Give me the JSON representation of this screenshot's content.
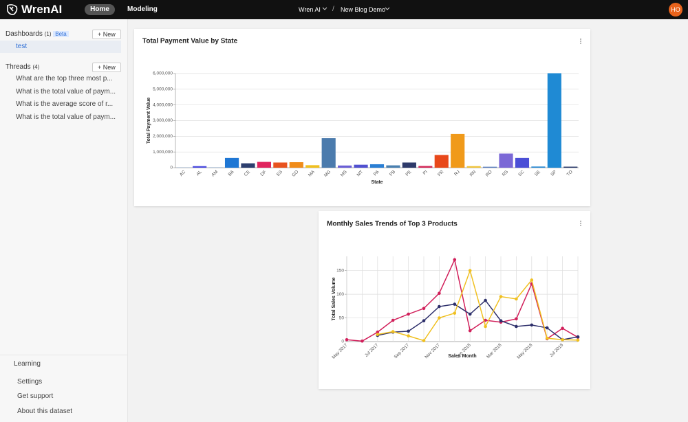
{
  "header": {
    "logo": "WrenAI",
    "nav": [
      "Home",
      "Modeling"
    ],
    "project": "Wren AI",
    "separator": "/",
    "dataset": "New Blog Demo",
    "avatar": "HO"
  },
  "sidebar": {
    "dashboards": {
      "title": "Dashboards",
      "count": "(1)",
      "badge": "Beta",
      "new": "New",
      "items": [
        "test"
      ]
    },
    "threads": {
      "title": "Threads",
      "count": "(4)",
      "new": "New",
      "items": [
        "What are the top three most p...",
        "What is the total value of paym...",
        "What is the average score of r...",
        "What is the total value of paym..."
      ]
    },
    "footer": [
      "Learning",
      "Settings",
      "Get support",
      "About this dataset"
    ]
  },
  "chart_data": [
    {
      "type": "bar",
      "title": "Total Payment Value by State",
      "x_label": "State",
      "y_label": "Total Payment Value",
      "categories": [
        "AC",
        "AL",
        "AM",
        "BA",
        "CE",
        "DF",
        "ES",
        "GO",
        "MA",
        "MG",
        "MS",
        "MT",
        "PA",
        "PB",
        "PE",
        "PI",
        "PR",
        "RJ",
        "RN",
        "RO",
        "RS",
        "SC",
        "SE",
        "SP",
        "TO"
      ],
      "values": [
        20000,
        100000,
        25000,
        620000,
        280000,
        370000,
        330000,
        350000,
        160000,
        1880000,
        140000,
        190000,
        220000,
        150000,
        330000,
        110000,
        810000,
        2150000,
        100000,
        60000,
        900000,
        620000,
        75000,
        6020000,
        65000
      ],
      "colors": [
        "#8fa8c8",
        "#4a4adf",
        "#8fa8c8",
        "#1f77d4",
        "#2c3e6e",
        "#e0245e",
        "#e8521e",
        "#f08c1a",
        "#f0c020",
        "#4b7bad",
        "#6b5fd6",
        "#5050d0",
        "#2a7fd4",
        "#4a80b0",
        "#2e3a6a",
        "#d42a5a",
        "#e8481a",
        "#f09a1a",
        "#f0c43a",
        "#5b7fbf",
        "#7b68d6",
        "#4b4fd6",
        "#2a8ad4",
        "#1f8ad4",
        "#2a3a6a"
      ],
      "ylim": [
        0,
        6000000
      ],
      "yticks": [
        0,
        {
          "value": 1000000,
          "label": "1,000,000"
        },
        {
          "value": 2000000,
          "label": "2,000,000"
        },
        {
          "value": 3000000,
          "label": "3,000,000"
        },
        {
          "value": 4000000,
          "label": "4,000,000"
        },
        {
          "value": 5000000,
          "label": "5,000,000"
        },
        {
          "value": 6000000,
          "label": "6,000,000"
        }
      ],
      "grid": true
    },
    {
      "type": "line",
      "title": "Monthly Sales Trends of Top 3 Products",
      "x_label": "Sales Month",
      "y_label": "Total Sales Volume",
      "categories": [
        "May 2017",
        null,
        "Jul 2017",
        null,
        "Sep 2017",
        null,
        "Nov 2017",
        null,
        "Jan 2018",
        null,
        "Mar 2018",
        null,
        "May 2018",
        null,
        "Jul 2018",
        null
      ],
      "series": [
        {
          "color": "#d11f5a",
          "values": [
            4,
            1,
            20,
            45,
            58,
            70,
            102,
            173,
            23,
            45,
            41,
            48,
            122,
            6,
            28,
            9
          ]
        },
        {
          "color": "#2d2f6b",
          "values": [
            null,
            null,
            13,
            20,
            22,
            44,
            74,
            79,
            58,
            87,
            44,
            32,
            35,
            29,
            4,
            10
          ]
        },
        {
          "color": "#f0c020",
          "values": [
            null,
            null,
            15,
            21,
            12,
            2,
            50,
            60,
            150,
            32,
            95,
            90,
            130,
            7,
            4,
            3
          ]
        }
      ],
      "ylim": [
        0,
        180
      ],
      "yticks": [
        0,
        50,
        100,
        150
      ],
      "grid": true
    }
  ]
}
